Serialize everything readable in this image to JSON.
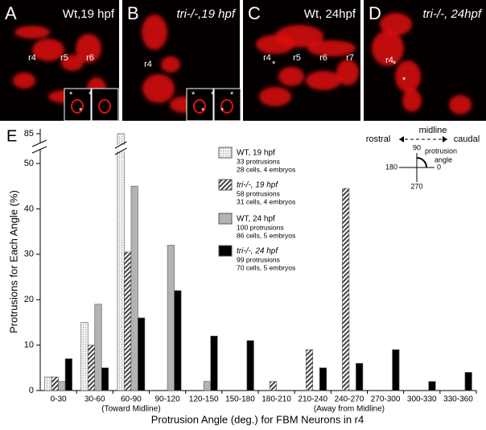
{
  "panels": [
    {
      "letter": "A",
      "title": "Wt,19 hpf",
      "labels": [
        "r4",
        "r5",
        "r6"
      ],
      "stars": [
        "*",
        "*",
        "*"
      ]
    },
    {
      "letter": "B",
      "title": "tri-/-,19 hpf",
      "labels": [
        "r4"
      ],
      "stars": [
        "*",
        "*",
        "*",
        "*",
        "*"
      ]
    },
    {
      "letter": "C",
      "title": "Wt, 24hpf",
      "labels": [
        "r4",
        "r5",
        "r6",
        "r7"
      ],
      "stars": [
        "*"
      ]
    },
    {
      "letter": "D",
      "title": "tri-/-, 24hpf",
      "labels": [
        "r4"
      ],
      "stars": [
        "*",
        "*"
      ]
    }
  ],
  "inset": {
    "rostral": "rostral",
    "midline": "midline",
    "caudal": "caudal",
    "a90": "90",
    "a180": "180",
    "a0": "0",
    "a270": "270",
    "protrusion": "protrusion",
    "angle": "angle"
  },
  "chart_data": {
    "type": "bar",
    "panel_letter": "E",
    "x_label": "Protrusion Angle (deg.) for FBM Neurons in r4",
    "y_label": "Protrusions for Each Angle (%)",
    "categories": [
      "0-30",
      "30-60",
      "60-90",
      "90-120",
      "120-150",
      "150-180",
      "180-210",
      "210-240",
      "240-270",
      "270-300",
      "300-330",
      "330-360"
    ],
    "category_notes": [
      null,
      null,
      "(Toward Midline)",
      null,
      null,
      null,
      null,
      null,
      "(Away from Midline)",
      null,
      null,
      null
    ],
    "series": [
      {
        "name": "WT, 19 hpf",
        "details": [
          "33 protrusions",
          "28 cells, 4 embryos"
        ],
        "color": "#e6e6e6",
        "pattern": "dots",
        "values": [
          3,
          15,
          85,
          0,
          0,
          0,
          0,
          0,
          0,
          0,
          0,
          0
        ]
      },
      {
        "name": "tri-/-, 19 hpf",
        "details": [
          "58 protrusions",
          "31 cells, 4 embryos"
        ],
        "color": "#555555",
        "pattern": "hatch",
        "values": [
          3,
          10,
          30.5,
          0,
          0,
          0,
          2,
          9,
          44.5,
          0,
          0,
          0
        ]
      },
      {
        "name": "WT, 24 hpf",
        "details": [
          "100 protrusions",
          "86 cells, 5 embryos"
        ],
        "color": "#b3b3b3",
        "pattern": null,
        "values": [
          2,
          19,
          45,
          32,
          2,
          0,
          0,
          0,
          0,
          0,
          0,
          0
        ]
      },
      {
        "name": "tri-/-, 24 hpf",
        "details": [
          "99 protrusions",
          "70 cells, 5 embryos"
        ],
        "color": "#000000",
        "pattern": null,
        "values": [
          7,
          5,
          16,
          22,
          12,
          11,
          0,
          5,
          6,
          9,
          2,
          4
        ]
      }
    ],
    "ylim": [
      0,
      85
    ],
    "yticks": [
      0,
      10,
      20,
      30,
      40,
      50,
      85
    ],
    "y_break": true
  }
}
